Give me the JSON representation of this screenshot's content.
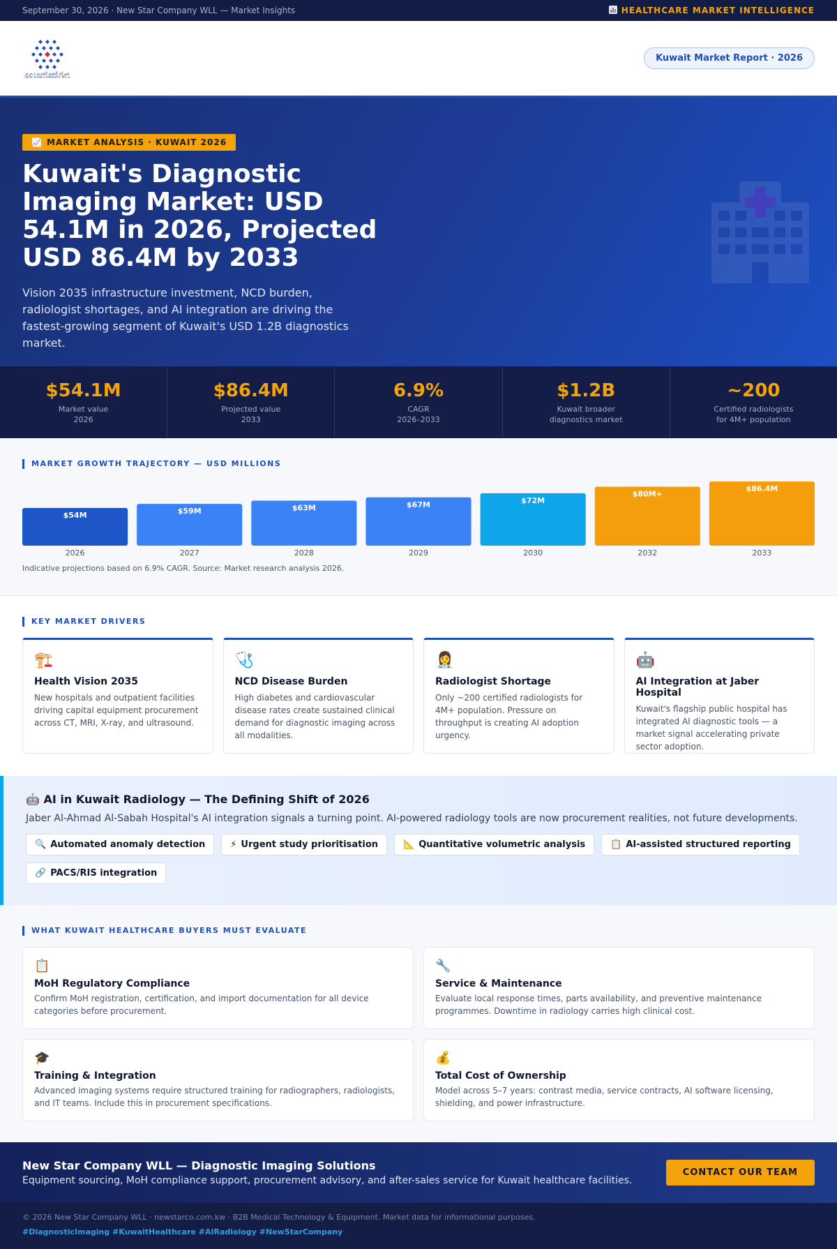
{
  "topbar": {
    "left_text": "September 30, 2026 · New Star Company WLL — Market Insights",
    "right_icon": "chart-icon",
    "right_text": "HEALTHCARE MARKET INTELLIGENCE"
  },
  "header": {
    "logo_arabic": "شركة النجم الجديد ذ.م.م",
    "logo_latin": "NEW STAR COMPANY W.L.L",
    "report_pill": "Kuwait Market Report · 2026"
  },
  "hero": {
    "tag_icon": "📈",
    "tag": "MARKET ANALYSIS · KUWAIT 2026",
    "title": "Kuwait's Diagnostic Imaging Market: USD 54.1M in 2026, Projected USD 86.4M by 2033",
    "subtitle": "Vision 2035 infrastructure investment, NCD burden, radiologist shortages, and AI integration are driving the fastest-growing segment of Kuwait's USD 1.2B diagnostics market."
  },
  "stats": [
    {
      "value": "$54.1M",
      "label": "Market value\n2026"
    },
    {
      "value": "$86.4M",
      "label": "Projected value\n2033"
    },
    {
      "value": "6.9%",
      "label": "CAGR\n2026–2033"
    },
    {
      "value": "$1.2B",
      "label": "Kuwait broader\ndiagnostics market"
    },
    {
      "value": "~200",
      "label": "Certified radiologists\nfor 4M+ population"
    }
  ],
  "chart_section": {
    "title": "MARKET GROWTH TRAJECTORY — USD MILLIONS",
    "note": "Indicative projections based on 6.9% CAGR. Source: Market research analysis 2026."
  },
  "chart_data": {
    "type": "bar",
    "title": "MARKET GROWTH TRAJECTORY — USD MILLIONS",
    "categories": [
      "2026",
      "2027",
      "2028",
      "2029",
      "2030",
      "2032",
      "2033"
    ],
    "values": [
      54,
      59,
      63,
      67,
      72,
      80,
      86.4
    ],
    "data_labels": [
      "$54M",
      "$59M",
      "$63M",
      "$67M",
      "$72M",
      "$80M+",
      "$86.4M"
    ],
    "colors": [
      "#1e56c8",
      "#3b82f6",
      "#3b82f6",
      "#3b82f6",
      "#0ea5e9",
      "#f59e0b",
      "#f59e0b"
    ],
    "xlabel": "",
    "ylabel": "",
    "grid": false
  },
  "drivers": {
    "title": "KEY MARKET DRIVERS",
    "items": [
      {
        "emoji": "🏗️",
        "title": "Health Vision 2035",
        "text": "New hospitals and outpatient facilities driving capital equipment procurement across CT, MRI, X-ray, and ultrasound."
      },
      {
        "emoji": "🩺",
        "title": "NCD Disease Burden",
        "text": "High diabetes and cardiovascular disease rates create sustained clinical demand for diagnostic imaging across all modalities."
      },
      {
        "emoji": "👩‍⚕️",
        "title": "Radiologist Shortage",
        "text": "Only ~200 certified radiologists for 4M+ population. Pressure on throughput is creating AI adoption urgency."
      },
      {
        "emoji": "🤖",
        "title": "AI Integration at Jaber Hospital",
        "text": "Kuwait's flagship public hospital has integrated AI diagnostic tools — a market signal accelerating private sector adoption."
      }
    ]
  },
  "ai": {
    "title": "🤖 AI in Kuwait Radiology — The Defining Shift of 2026",
    "subtitle": "Jaber Al-Ahmad Al-Sabah Hospital's AI integration signals a turning point. AI-powered radiology tools are now procurement realities, not future developments.",
    "chips": [
      {
        "icon": "🔍",
        "label": "Automated anomaly detection"
      },
      {
        "icon": "⚡",
        "label": "Urgent study prioritisation"
      },
      {
        "icon": "📐",
        "label": "Quantitative volumetric analysis"
      },
      {
        "icon": "📋",
        "label": "AI-assisted structured reporting"
      },
      {
        "icon": "🔗",
        "label": "PACS/RIS integration"
      }
    ]
  },
  "evaluate": {
    "title": "WHAT KUWAIT HEALTHCARE BUYERS MUST EVALUATE",
    "items": [
      {
        "emoji": "📋",
        "title": "MoH Regulatory Compliance",
        "text": "Confirm MoH registration, certification, and import documentation for all device categories before procurement."
      },
      {
        "emoji": "🔧",
        "title": "Service & Maintenance",
        "text": "Evaluate local response times, parts availability, and preventive maintenance programmes. Downtime in radiology carries high clinical cost."
      },
      {
        "emoji": "🎓",
        "title": "Training & Integration",
        "text": "Advanced imaging systems require structured training for radiographers, radiologists, and IT teams. Include this in procurement specifications."
      },
      {
        "emoji": "💰",
        "title": "Total Cost of Ownership",
        "text": "Model across 5–7 years: contrast media, service contracts, AI software licensing, shielding, and power infrastructure."
      }
    ]
  },
  "cta": {
    "title": "New Star Company WLL — Diagnostic Imaging Solutions",
    "text": "Equipment sourcing, MoH compliance support, procurement advisory, and after-sales service for Kuwait healthcare facilities.",
    "button": "CONTACT OUR TEAM"
  },
  "footer": {
    "copyright": "© 2026 New Star Company WLL · newstarco.com.kw · B2B Medical Technology & Equipment. Market data for informational purposes.",
    "hashtags": "#DiagnosticImaging #KuwaitHealthcare #AIRadiology #NewStarCompany"
  }
}
